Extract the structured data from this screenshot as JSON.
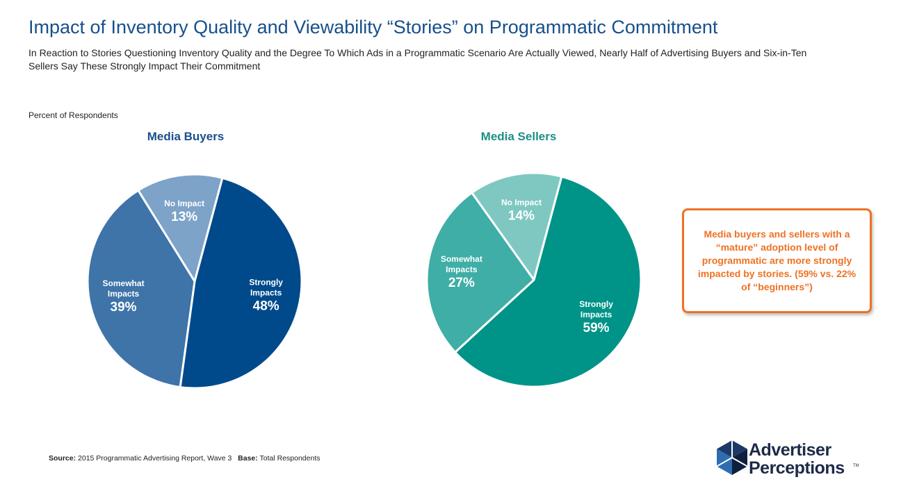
{
  "title": "Impact of Inventory Quality and Viewability “Stories” on Programmatic Commitment",
  "subtitle": "In Reaction to Stories Questioning Inventory Quality and the Degree To Which Ads in a Programmatic Scenario Are Actually Viewed, Nearly Half of Advertising Buyers and Six-in-Ten Sellers Say These Strongly Impact Their Commitment",
  "note": "Percent of Respondents",
  "chart_data": [
    {
      "type": "pie",
      "title": "Media Buyers",
      "title_color": "#1a4f8b",
      "slices": [
        {
          "label": "Strongly Impacts",
          "value": 48,
          "display": "48%",
          "color": "#004a8c"
        },
        {
          "label": "Somewhat Impacts",
          "value": 39,
          "display": "39%",
          "color": "#3e74a8"
        },
        {
          "label": "No Impact",
          "value": 13,
          "display": "13%",
          "color": "#7ea3c8"
        }
      ]
    },
    {
      "type": "pie",
      "title": "Media Sellers",
      "title_color": "#1c8f87",
      "slices": [
        {
          "label": "Strongly Impacts",
          "value": 59,
          "display": "59%",
          "color": "#009387"
        },
        {
          "label": "Somewhat Impacts",
          "value": 27,
          "display": "27%",
          "color": "#3eaea6"
        },
        {
          "label": "No Impact",
          "value": 14,
          "display": "14%",
          "color": "#7fc8c2"
        }
      ]
    }
  ],
  "callout": "Media buyers and sellers with a “mature” adoption level of programmatic are more strongly impacted by stories. (59% vs. 22% of “beginners”)",
  "footer": {
    "source_label": "Source:",
    "source_text": "2015 Programmatic Advertising Report, Wave 3",
    "base_label": "Base:",
    "base_text": "Total Respondents"
  },
  "logo": {
    "line1": "Advertiser",
    "line2": "Perceptions",
    "tm": "TM",
    "colors": [
      "#1d3a66",
      "#2f6db0",
      "#0e1f3e"
    ]
  }
}
